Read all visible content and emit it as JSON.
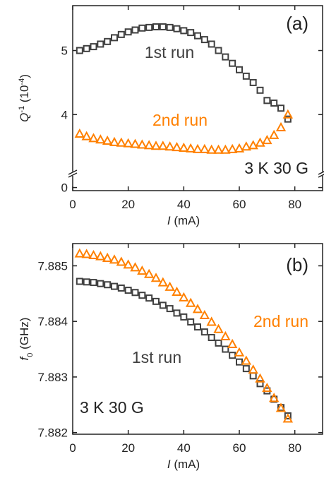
{
  "chart_data": [
    {
      "type": "scatter",
      "ylabel": [
        {
          "text": "Q",
          "style": "italic"
        },
        {
          "text": "-1",
          "style": "sup"
        },
        {
          "text": " (10",
          "style": "normal"
        },
        {
          "text": "-4",
          "style": "sup"
        },
        {
          "text": ")",
          "style": "normal"
        }
      ],
      "xlabel": [
        {
          "text": "I",
          "style": "italic"
        },
        {
          "text": " (mA)",
          "style": "normal"
        }
      ],
      "annotations": [
        {
          "text": "(a)",
          "color": "#222222"
        },
        {
          "text": "1st run",
          "color": "#404040"
        },
        {
          "text": "2nd run",
          "color": "#ff8000"
        },
        {
          "text": "3 K 30 G",
          "color": "#222222"
        }
      ],
      "x": [
        2.5,
        5,
        7.5,
        10,
        12.5,
        15,
        17.5,
        20,
        22.5,
        25,
        27.5,
        30,
        32.5,
        35,
        37.5,
        40,
        42.5,
        45,
        47.5,
        50,
        52.5,
        55,
        57.5,
        60,
        62.5,
        65,
        67.5,
        70,
        72.5,
        75,
        77.5
      ],
      "series": [
        {
          "name": "1st run",
          "color": "#404040",
          "marker": "square",
          "values": [
            5.0,
            5.03,
            5.06,
            5.1,
            5.14,
            5.2,
            5.25,
            5.29,
            5.32,
            5.35,
            5.36,
            5.37,
            5.37,
            5.36,
            5.34,
            5.31,
            5.28,
            5.23,
            5.17,
            5.1,
            5.0,
            4.9,
            4.8,
            4.7,
            4.6,
            4.5,
            4.38,
            4.22,
            4.18,
            4.1,
            3.93
          ]
        },
        {
          "name": "2nd run",
          "color": "#ff8000",
          "marker": "triangle",
          "values": [
            3.7,
            3.66,
            3.63,
            3.61,
            3.59,
            3.57,
            3.56,
            3.55,
            3.54,
            3.53,
            3.52,
            3.51,
            3.51,
            3.5,
            3.49,
            3.48,
            3.47,
            3.46,
            3.46,
            3.45,
            3.45,
            3.45,
            3.46,
            3.47,
            3.5,
            3.52,
            3.56,
            3.6,
            3.68,
            3.8,
            4.0
          ]
        }
      ],
      "xlim": [
        0,
        90
      ],
      "xticks": [
        0,
        20,
        40,
        60,
        80
      ],
      "ylim": [
        -0.1,
        5.7
      ],
      "ybreak": [
        0.4,
        3.1
      ],
      "yticks": [
        0,
        4,
        5
      ]
    },
    {
      "type": "scatter",
      "ylabel": [
        {
          "text": "f",
          "style": "italic"
        },
        {
          "text": "0",
          "style": "sub"
        },
        {
          "text": " (GHz)",
          "style": "normal"
        }
      ],
      "xlabel": [
        {
          "text": "I",
          "style": "italic"
        },
        {
          "text": " (mA)",
          "style": "normal"
        }
      ],
      "annotations": [
        {
          "text": "(b)",
          "color": "#222222"
        },
        {
          "text": "2nd run",
          "color": "#ff8000"
        },
        {
          "text": "1st run",
          "color": "#404040"
        },
        {
          "text": "3 K 30 G",
          "color": "#222222"
        }
      ],
      "x": [
        2.5,
        5,
        7.5,
        10,
        12.5,
        15,
        17.5,
        20,
        22.5,
        25,
        27.5,
        30,
        32.5,
        35,
        37.5,
        40,
        42.5,
        45,
        47.5,
        50,
        52.5,
        55,
        57.5,
        60,
        62.5,
        65,
        67.5,
        70,
        72.5,
        75,
        77.5
      ],
      "series": [
        {
          "name": "1st run",
          "color": "#404040",
          "marker": "square",
          "values": [
            7.88472,
            7.88471,
            7.8847,
            7.88468,
            7.88466,
            7.88463,
            7.8846,
            7.88456,
            7.88452,
            7.88447,
            7.88442,
            7.88436,
            7.88429,
            7.88423,
            7.88415,
            7.88408,
            7.88399,
            7.8839,
            7.88381,
            7.88371,
            7.88361,
            7.8835,
            7.88339,
            7.88327,
            7.88315,
            7.88302,
            7.88288,
            7.88275,
            7.8826,
            7.88245,
            7.8823
          ]
        },
        {
          "name": "2nd run",
          "color": "#ff8000",
          "marker": "triangle",
          "values": [
            7.88522,
            7.88521,
            7.88519,
            7.88517,
            7.88514,
            7.88511,
            7.88507,
            7.88502,
            7.88497,
            7.88491,
            7.88485,
            7.88478,
            7.8847,
            7.88462,
            7.88453,
            7.88443,
            7.88433,
            7.88422,
            7.88411,
            7.88399,
            7.88386,
            7.88373,
            7.88359,
            7.88344,
            7.88329,
            7.88313,
            7.88297,
            7.8828,
            7.88262,
            7.88244,
            7.88225
          ]
        }
      ],
      "xlim": [
        0,
        90
      ],
      "xticks": [
        0,
        20,
        40,
        60,
        80
      ],
      "ylim": [
        7.88197,
        7.8854
      ],
      "yticks": [
        7.882,
        7.883,
        7.884,
        7.885
      ]
    }
  ]
}
